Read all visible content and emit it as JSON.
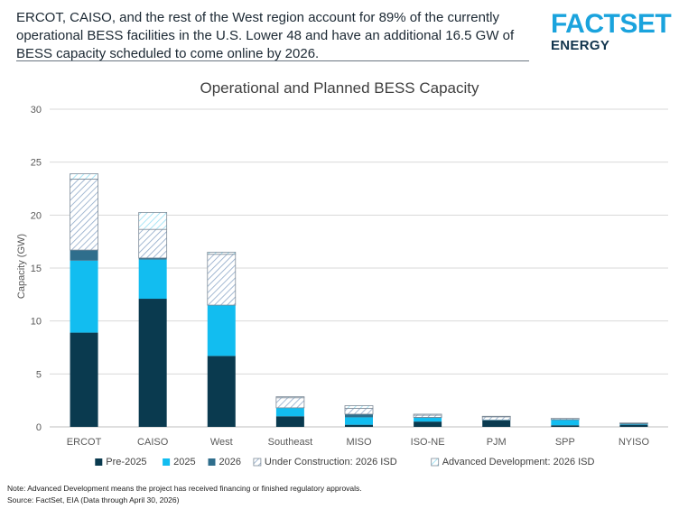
{
  "headline": "ERCOT, CAISO, and the rest of the West region account for 89% of the currently operational BESS facilities in the U.S. Lower 48 and have an additional 16.5 GW of BESS capacity scheduled to come online by 2026.",
  "logo": {
    "word": "FACTSET",
    "sub": "ENERGY"
  },
  "colors": {
    "pre2025": "#0a3a4f",
    "y2025": "#12bdf0",
    "y2026": "#2f6e8c",
    "under_construction": "#8ea8c8",
    "advanced_development": "#9fe3f5",
    "gridline": "#d9d9d9",
    "axis": "#bfbfbf"
  },
  "chart_data": {
    "type": "bar",
    "stacked": true,
    "title": "Operational and Planned BESS Capacity",
    "xlabel": "",
    "ylabel": "Capacity (GW)",
    "ylim": [
      0,
      30
    ],
    "yticks": [
      0,
      5,
      10,
      15,
      20,
      25,
      30
    ],
    "grid": true,
    "legend_position": "bottom",
    "categories": [
      "ERCOT",
      "CAISO",
      "West",
      "Southeast",
      "MISO",
      "ISO-NE",
      "PJM",
      "SPP",
      "NYISO"
    ],
    "series": [
      {
        "name": "Pre-2025",
        "color_key": "pre2025",
        "pattern": "solid",
        "values": [
          8.9,
          12.1,
          6.7,
          1.0,
          0.2,
          0.5,
          0.6,
          0.15,
          0.2
        ]
      },
      {
        "name": "2025",
        "color_key": "y2025",
        "pattern": "solid",
        "values": [
          6.8,
          3.7,
          4.8,
          0.8,
          0.7,
          0.35,
          0.05,
          0.5,
          0.02
        ]
      },
      {
        "name": "2026",
        "color_key": "y2026",
        "pattern": "solid",
        "values": [
          1.0,
          0.15,
          0.0,
          0.0,
          0.3,
          0.05,
          0.0,
          0.05,
          0.1
        ]
      },
      {
        "name": "Under Construction: 2026 ISD",
        "color_key": "under_construction",
        "pattern": "hatch",
        "values": [
          6.7,
          2.7,
          4.8,
          0.95,
          0.55,
          0.2,
          0.3,
          0.1,
          0.05
        ]
      },
      {
        "name": "Advanced Development: 2026 ISD",
        "color_key": "advanced_development",
        "pattern": "hatch-light",
        "values": [
          0.5,
          1.6,
          0.2,
          0.1,
          0.25,
          0.1,
          0.05,
          0.0,
          0.0
        ]
      }
    ]
  },
  "footnotes": {
    "note": "Note: Advanced Development means the project has received financing or finished regulatory approvals.",
    "source": "Source: FactSet, EIA (Data through April 30, 2026)"
  }
}
